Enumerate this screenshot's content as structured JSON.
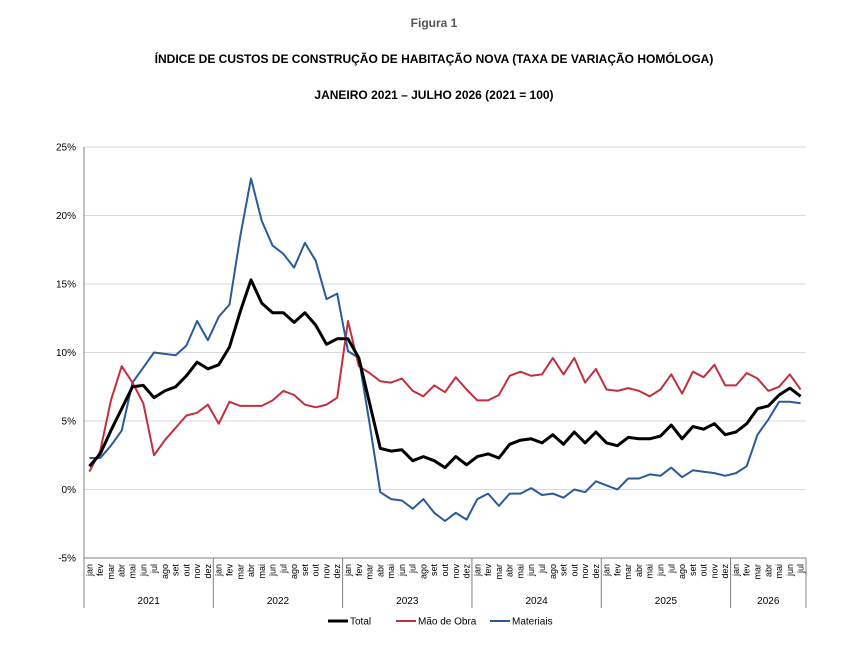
{
  "figure_label": "Figura 1",
  "title": "ÍNDICE DE CUSTOS DE CONSTRUÇÃO DE HABITAÇÃO NOVA (TAXA DE VARIAÇÃO HOMÓLOGA)",
  "subtitle": "JANEIRO 2021 – JULHO 2026 (2021 = 100)",
  "chart_data": {
    "type": "line",
    "ylim": [
      -5,
      25
    ],
    "y_ticks": [
      "-5%",
      "0%",
      "5%",
      "10%",
      "15%",
      "20%",
      "25%"
    ],
    "y_tick_values": [
      -5,
      0,
      5,
      10,
      15,
      20,
      25
    ],
    "grid": "horizontal",
    "legend_position": "bottom",
    "month_labels": [
      "jan",
      "fev",
      "mar",
      "abr",
      "mai",
      "jun",
      "jul",
      "ago",
      "set",
      "out",
      "nov",
      "dez"
    ],
    "years": [
      "2021",
      "2022",
      "2023",
      "2024",
      "2025",
      "2026"
    ],
    "x": [
      "2021-01",
      "2021-02",
      "2021-03",
      "2021-04",
      "2021-05",
      "2021-06",
      "2021-07",
      "2021-08",
      "2021-09",
      "2021-10",
      "2021-11",
      "2021-12",
      "2022-01",
      "2022-02",
      "2022-03",
      "2022-04",
      "2022-05",
      "2022-06",
      "2022-07",
      "2022-08",
      "2022-09",
      "2022-10",
      "2022-11",
      "2022-12",
      "2023-01",
      "2023-02",
      "2023-03",
      "2023-04",
      "2023-05",
      "2023-06",
      "2023-07",
      "2023-08",
      "2023-09",
      "2023-10",
      "2023-11",
      "2023-12",
      "2024-01",
      "2024-02",
      "2024-03",
      "2024-04",
      "2024-05",
      "2024-06",
      "2024-07",
      "2024-08",
      "2024-09",
      "2024-10",
      "2024-11",
      "2024-12",
      "2025-01",
      "2025-02",
      "2025-03",
      "2025-04",
      "2025-05",
      "2025-06",
      "2025-07",
      "2025-08",
      "2025-09",
      "2025-10",
      "2025-11",
      "2025-12",
      "2026-01",
      "2026-02",
      "2026-03",
      "2026-04",
      "2026-05",
      "2026-06",
      "2026-07"
    ],
    "series": [
      {
        "name": "Total",
        "color": "#000000",
        "values": [
          1.7,
          2.6,
          4.3,
          5.9,
          7.5,
          7.6,
          6.7,
          7.2,
          7.5,
          8.3,
          9.3,
          8.8,
          9.1,
          10.4,
          13.0,
          15.3,
          13.6,
          12.9,
          12.9,
          12.2,
          12.9,
          12.0,
          10.6,
          11.0,
          11.0,
          9.6,
          6.3,
          3.0,
          2.8,
          2.9,
          2.1,
          2.4,
          2.1,
          1.6,
          2.4,
          1.8,
          2.4,
          2.6,
          2.3,
          3.3,
          3.6,
          3.7,
          3.4,
          4.0,
          3.3,
          4.2,
          3.4,
          4.2,
          3.4,
          3.2,
          3.8,
          3.7,
          3.7,
          3.9,
          4.7,
          3.7,
          4.6,
          4.4,
          4.8,
          4.0,
          4.2,
          4.8,
          5.9,
          6.1,
          6.9,
          7.4,
          6.8
        ]
      },
      {
        "name": "Mão de Obra",
        "color": "#c0303f",
        "values": [
          1.3,
          2.8,
          6.5,
          9.0,
          7.8,
          6.3,
          2.5,
          3.6,
          4.5,
          5.4,
          5.6,
          6.2,
          4.8,
          6.4,
          6.1,
          6.1,
          6.1,
          6.5,
          7.2,
          6.9,
          6.2,
          6.0,
          6.2,
          6.7,
          12.3,
          9.0,
          8.5,
          7.9,
          7.8,
          8.1,
          7.2,
          6.8,
          7.6,
          7.1,
          8.2,
          7.3,
          6.5,
          6.5,
          6.9,
          8.3,
          8.6,
          8.3,
          8.4,
          9.6,
          8.4,
          9.6,
          7.8,
          8.8,
          7.3,
          7.2,
          7.4,
          7.2,
          6.8,
          7.3,
          8.4,
          7.0,
          8.6,
          8.2,
          9.1,
          7.6,
          7.6,
          8.5,
          8.1,
          7.2,
          7.5,
          8.4,
          7.3
        ]
      },
      {
        "name": "Materiais",
        "color": "#2a5a9a",
        "values": [
          2.3,
          2.3,
          3.2,
          4.3,
          7.8,
          8.9,
          10.0,
          9.9,
          9.8,
          10.5,
          12.3,
          10.9,
          12.6,
          13.5,
          18.5,
          22.7,
          19.6,
          17.8,
          17.2,
          16.2,
          18.0,
          16.7,
          13.9,
          14.3,
          10.1,
          9.6,
          4.8,
          -0.2,
          -0.7,
          -0.8,
          -1.4,
          -0.7,
          -1.7,
          -2.3,
          -1.7,
          -2.2,
          -0.7,
          -0.3,
          -1.2,
          -0.3,
          -0.3,
          0.1,
          -0.4,
          -0.3,
          -0.6,
          0.0,
          -0.2,
          0.6,
          0.3,
          0.0,
          0.8,
          0.8,
          1.1,
          1.0,
          1.6,
          0.9,
          1.4,
          1.3,
          1.2,
          1.0,
          1.2,
          1.7,
          4.0,
          5.1,
          6.4,
          6.4,
          6.3
        ]
      }
    ]
  }
}
